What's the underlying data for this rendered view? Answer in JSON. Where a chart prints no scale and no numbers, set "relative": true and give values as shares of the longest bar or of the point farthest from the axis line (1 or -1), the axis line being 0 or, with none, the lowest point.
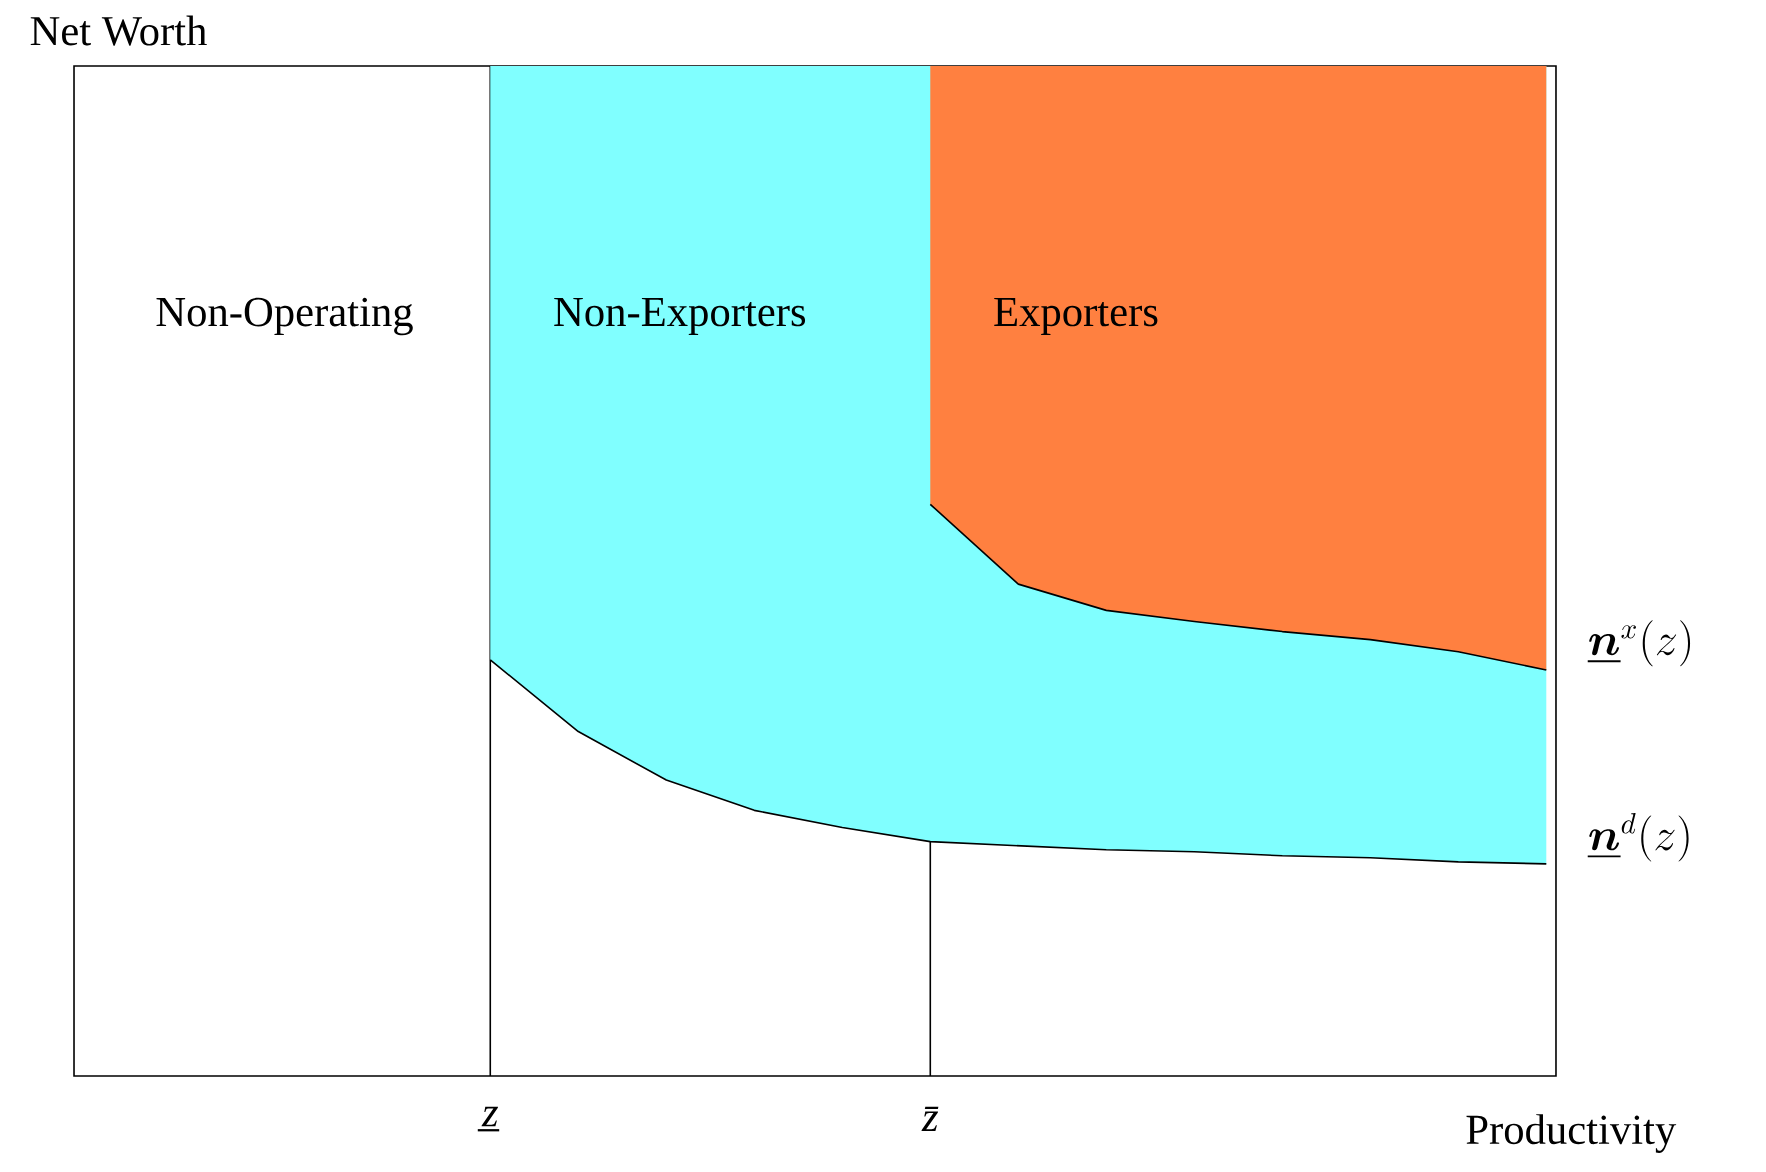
{
  "chart_data": {
    "type": "area",
    "relative": true,
    "xlabel": "Productivity",
    "categories": [
      "z̲",
      null,
      null,
      null,
      null,
      "z̄",
      null,
      null,
      null,
      null,
      null,
      null,
      null
    ],
    "tick_labels": "x",
    "grid": "x",
    "annotations": [
      "Non-Operating",
      "Net Worth"
    ],
    "series": [
      {
        "name": "Exporters",
        "color": "#ff8040",
        "values": [
          null,
          null,
          null,
          null,
          null,
          1,
          1,
          1,
          1,
          1,
          1,
          1,
          1
        ]
      },
      {
        "type": "line",
        "name": "\\underline{\\boldsymbol{n}}^{x}(z)",
        "color": "#000000",
        "values": [
          null,
          null,
          null,
          null,
          null,
          0.566,
          0.487,
          0.461,
          0.45,
          0.44,
          0.432,
          0.42,
          0.402
        ]
      },
      {
        "name": "Non-Exporters",
        "color": "#80ffff",
        "values": [
          1,
          1,
          1,
          1,
          1,
          1,
          1,
          1,
          1,
          1,
          1,
          1,
          1
        ]
      },
      {
        "type": "line",
        "name": "\\underline{\\boldsymbol{n}}^{d}(z)",
        "color": "#000000",
        "values": [
          0.412,
          0.341,
          0.293,
          0.263,
          0.246,
          0.232,
          0.228,
          0.224,
          0.222,
          0.218,
          0.216,
          0.212,
          0.21
        ]
      }
    ]
  }
}
